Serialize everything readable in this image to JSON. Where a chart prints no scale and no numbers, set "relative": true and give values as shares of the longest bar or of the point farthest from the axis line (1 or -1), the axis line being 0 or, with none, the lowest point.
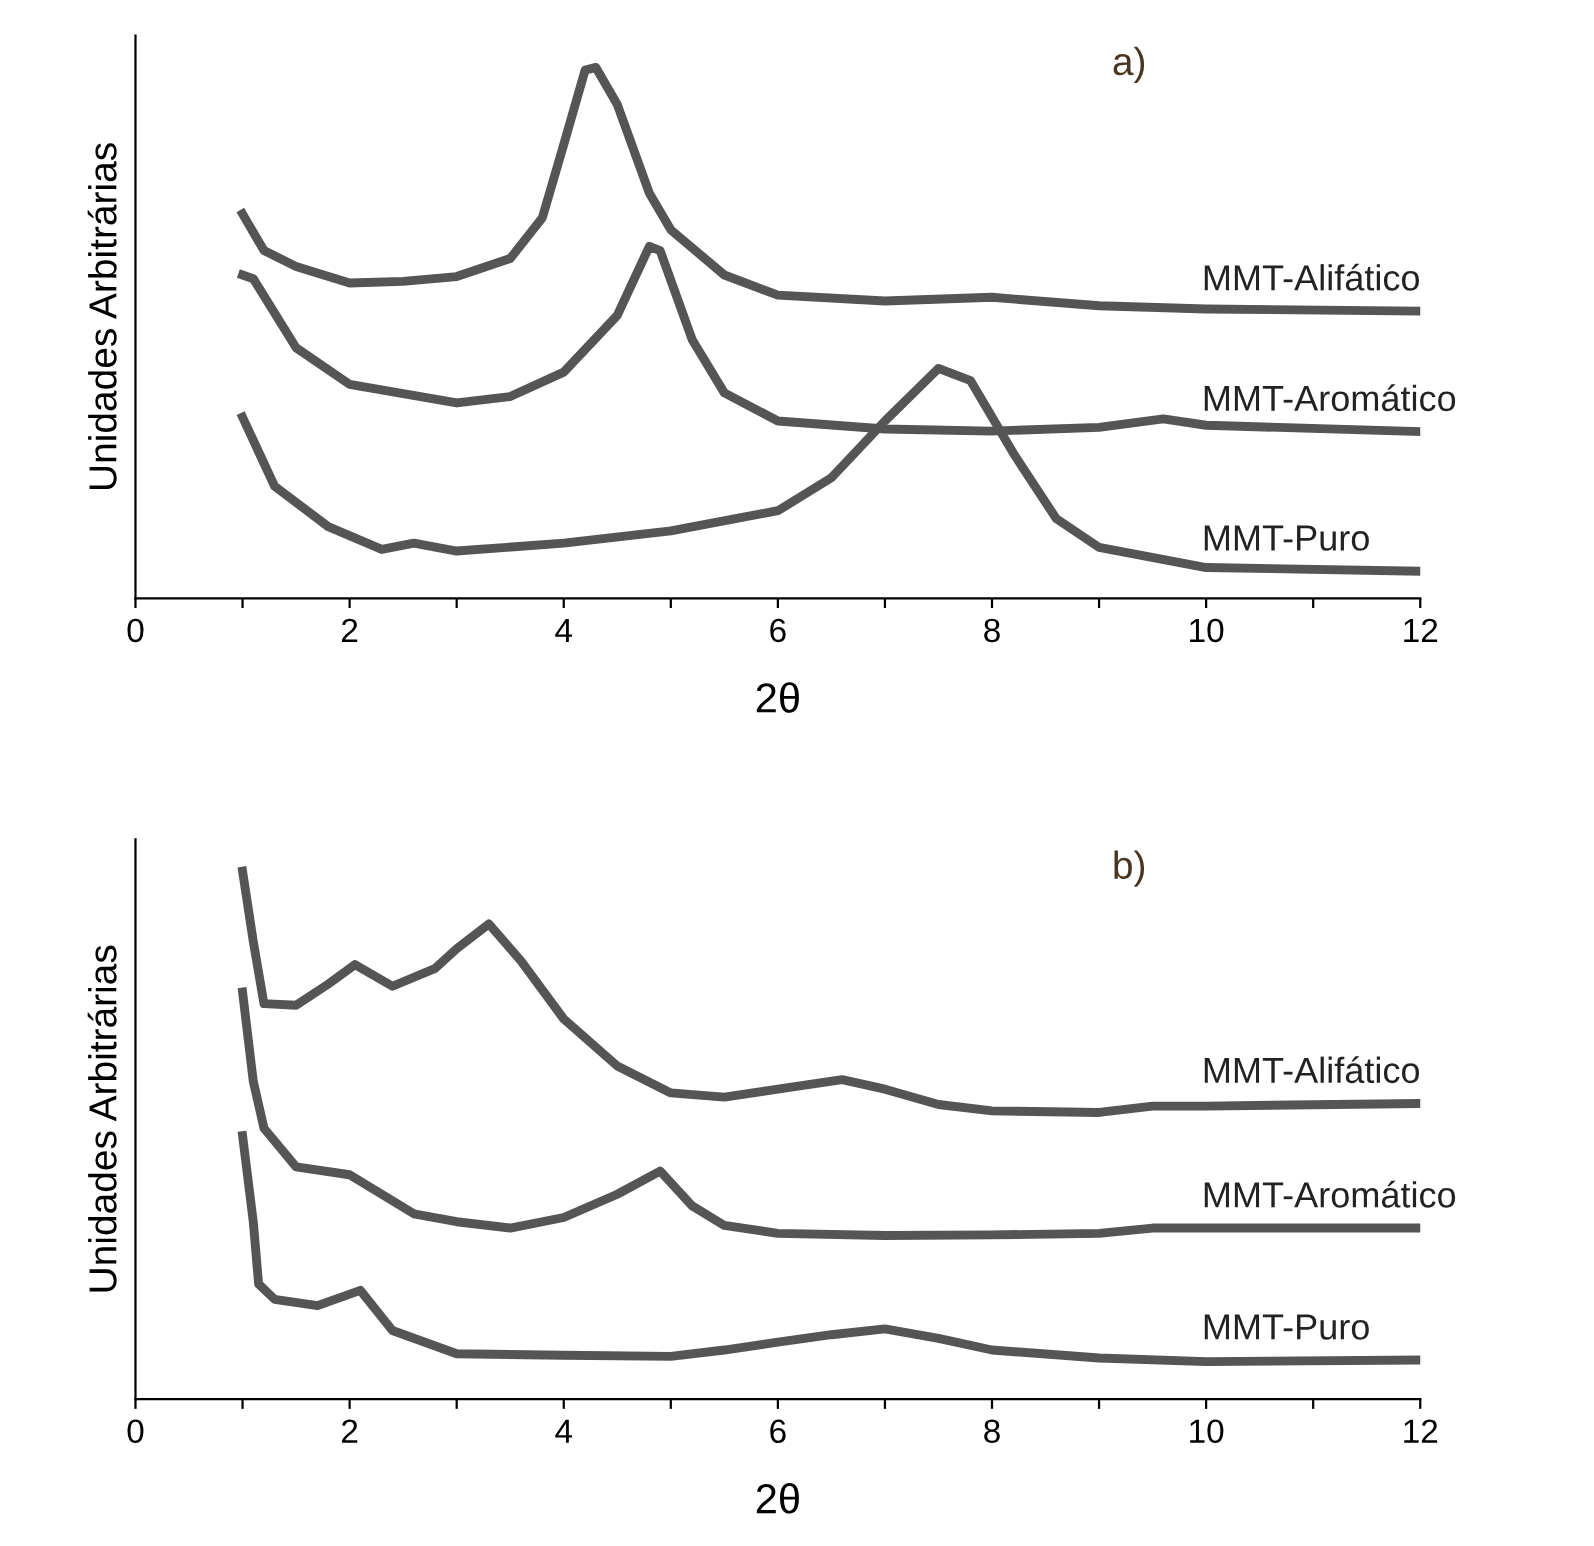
{
  "chart_data": [
    {
      "type": "line",
      "relative": true,
      "xlabel": "2θ",
      "ylabel": "Unidades Arbitrárias",
      "annotations": [
        "a)"
      ],
      "xlim": [
        0,
        12
      ],
      "xticks": [
        0,
        {
          "value": 1,
          "label": null
        },
        2,
        {
          "value": 3,
          "label": null
        },
        4,
        {
          "value": 5,
          "label": null
        },
        6,
        {
          "value": 7,
          "label": null
        },
        8,
        {
          "value": 9,
          "label": null
        },
        10,
        {
          "value": 11,
          "label": null
        },
        12
      ],
      "grid": false,
      "legend": false,
      "line_style": "solid",
      "tick_labels": "x",
      "series": [
        {
          "name": "MMT-Alifático",
          "color": "#555555",
          "x": [
            1.0,
            1.2,
            1.5,
            2.0,
            2.5,
            3.0,
            3.5,
            3.8,
            4.0,
            4.2,
            4.3,
            4.5,
            4.8,
            5.0,
            5.5,
            6.0,
            7.0,
            8.0,
            9.0,
            10,
            12
          ],
          "values": [
            0.724,
            0.655,
            0.625,
            0.594,
            0.597,
            0.606,
            0.64,
            0.717,
            0.855,
            0.995,
            1.0,
            0.93,
            0.763,
            0.694,
            0.609,
            0.571,
            0.56,
            0.567,
            0.551,
            0.545,
            0.541
          ]
        },
        {
          "name": "MMT-Aromático",
          "color": "#555555",
          "x": [
            1.0,
            1.1,
            1.5,
            2.0,
            3.0,
            3.5,
            4.0,
            4.5,
            4.8,
            4.9,
            5.2,
            5.5,
            6.0,
            7.0,
            8.0,
            9.0,
            9.6,
            10.0,
            12
          ],
          "values": [
            0.609,
            0.602,
            0.472,
            0.403,
            0.368,
            0.38,
            0.426,
            0.533,
            0.663,
            0.655,
            0.487,
            0.387,
            0.334,
            0.319,
            0.315,
            0.322,
            0.338,
            0.326,
            0.314
          ]
        },
        {
          "name": "MMT-Puro",
          "color": "#555555",
          "x": [
            1.0,
            1.3,
            1.8,
            2.3,
            2.6,
            3.0,
            4.0,
            5.0,
            6.0,
            6.5,
            7.0,
            7.5,
            7.8,
            8.2,
            8.6,
            9.0,
            10,
            12
          ],
          "values": [
            0.341,
            0.211,
            0.135,
            0.092,
            0.104,
            0.089,
            0.104,
            0.127,
            0.165,
            0.227,
            0.334,
            0.433,
            0.41,
            0.273,
            0.15,
            0.096,
            0.058,
            0.051
          ]
        }
      ]
    },
    {
      "type": "line",
      "relative": true,
      "xlabel": "2θ",
      "ylabel": "Unidades Arbitrárias",
      "annotations": [
        "b)"
      ],
      "xlim": [
        0,
        12
      ],
      "xticks": [
        0,
        {
          "value": 1,
          "label": null
        },
        2,
        {
          "value": 3,
          "label": null
        },
        4,
        {
          "value": 5,
          "label": null
        },
        6,
        {
          "value": 7,
          "label": null
        },
        8,
        {
          "value": 9,
          "label": null
        },
        10,
        {
          "value": 11,
          "label": null
        },
        12
      ],
      "grid": false,
      "legend": false,
      "line_style": "solid",
      "tick_labels": "x",
      "series": [
        {
          "name": "MMT-Alifático",
          "color": "#555555",
          "x": [
            1.0,
            1.1,
            1.2,
            1.5,
            1.8,
            2.05,
            2.4,
            2.8,
            3.0,
            3.3,
            3.6,
            4.0,
            4.5,
            5.0,
            5.5,
            6.0,
            6.6,
            7.0,
            7.5,
            8.0,
            9.0,
            9.5,
            10,
            12
          ],
          "values": [
            1.0,
            0.867,
            0.749,
            0.746,
            0.786,
            0.823,
            0.782,
            0.816,
            0.853,
            0.9,
            0.83,
            0.72,
            0.631,
            0.58,
            0.572,
            0.587,
            0.605,
            0.587,
            0.558,
            0.546,
            0.543,
            0.555,
            0.555,
            0.56
          ]
        },
        {
          "name": "MMT-Aromático",
          "color": "#555555",
          "x": [
            1.0,
            1.1,
            1.2,
            1.5,
            2.0,
            2.3,
            2.6,
            3.0,
            3.5,
            4.0,
            4.5,
            4.9,
            5.2,
            5.5,
            6.0,
            7.0,
            8.0,
            9.0,
            9.5,
            12
          ],
          "values": [
            0.771,
            0.602,
            0.513,
            0.44,
            0.425,
            0.388,
            0.351,
            0.336,
            0.324,
            0.344,
            0.388,
            0.432,
            0.366,
            0.329,
            0.314,
            0.31,
            0.311,
            0.314,
            0.324,
            0.324
          ]
        },
        {
          "name": "MMT-Puro",
          "color": "#555555",
          "x": [
            1.0,
            1.1,
            1.15,
            1.3,
            1.7,
            2.1,
            2.4,
            3.0,
            4.0,
            5.0,
            5.5,
            6.0,
            6.5,
            7.0,
            7.5,
            8.0,
            9.0,
            10,
            12
          ],
          "values": [
            0.499,
            0.336,
            0.218,
            0.189,
            0.177,
            0.206,
            0.13,
            0.086,
            0.083,
            0.081,
            0.093,
            0.108,
            0.122,
            0.133,
            0.115,
            0.093,
            0.078,
            0.071,
            0.074
          ]
        }
      ]
    }
  ]
}
